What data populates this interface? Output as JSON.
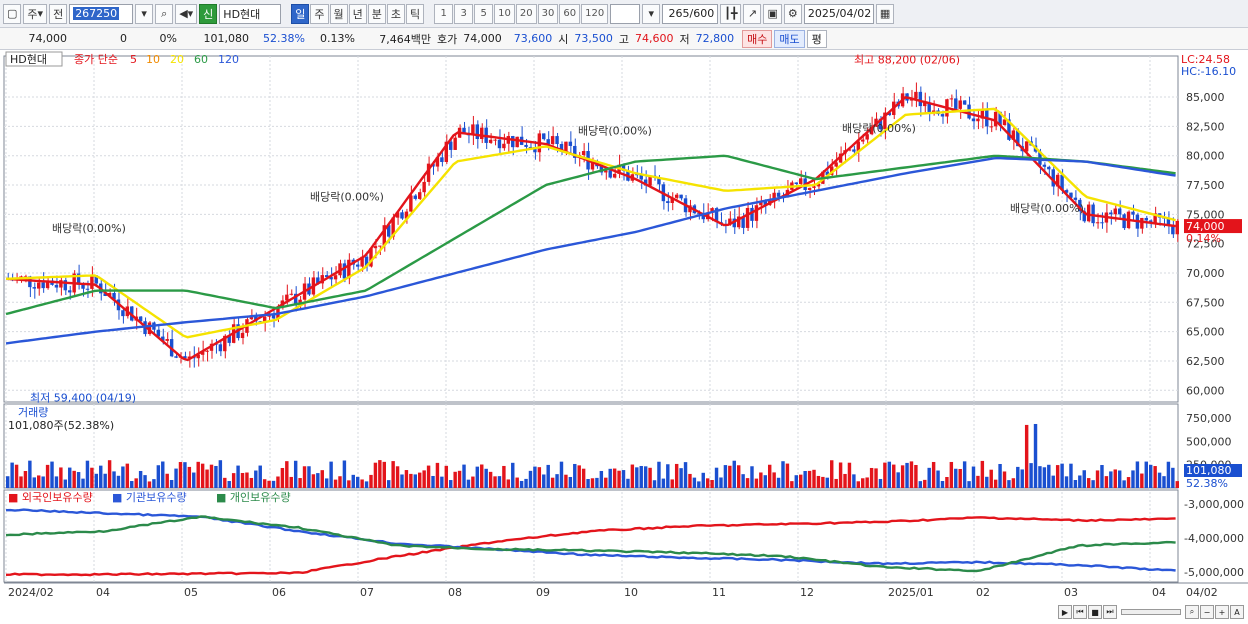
{
  "toolbar": {
    "period_label": "주",
    "prev_label": "전",
    "code": "267250",
    "credit_badge": "신",
    "stock_name": "HD현대",
    "periods": [
      "일",
      "주",
      "월",
      "년",
      "분",
      "초",
      "틱"
    ],
    "active_period": "일",
    "intervals": [
      "1",
      "3",
      "5",
      "10",
      "20",
      "30",
      "60",
      "120"
    ],
    "count_value": "265",
    "count_total": "/600",
    "date": "2025/04/02"
  },
  "quote": {
    "price": "74,000",
    "change": "0",
    "change_pct": "0%",
    "volume": "101,080",
    "volume_ratio": "52.38%",
    "turnover_pct": "0.13%",
    "trade_value": "7,464백만",
    "ask_label": "호가",
    "ask": "74,000",
    "bid": "73,600",
    "open_label": "시",
    "open": "73,500",
    "high_label": "고",
    "high": "74,600",
    "low_label": "저",
    "low": "72,800",
    "buy_label": "매수",
    "sell_label": "매도",
    "eval_label": "평"
  },
  "price_panel": {
    "name": "HD현대",
    "ma_title": "종가 단순",
    "ma_periods": [
      "5",
      "10",
      "20",
      "60",
      "120"
    ],
    "ma_colors": [
      "#e3141b",
      "#f08a00",
      "#f5e300",
      "#2b9a46",
      "#2b57d8"
    ],
    "lc": "LC:24.58",
    "hc": "HC:-16.10",
    "current_price_tag": "74,000",
    "current_pct_tag": "0.14%",
    "annotations": {
      "high": "최고 88,200 (02/06)",
      "low": "최저 59,400 (04/19)",
      "dividend": "배당락(0.00%)"
    },
    "y_ticks": [
      "85,000",
      "82,500",
      "80,000",
      "77,500",
      "75,000",
      "72,500",
      "70,000",
      "67,500",
      "65,000",
      "62,500",
      "60,000"
    ]
  },
  "volume_panel": {
    "title": "거래량",
    "info": "101,080주(52.38%)",
    "y_ticks": [
      "750,000",
      "500,000",
      "250,000"
    ],
    "tag_value": "101,080",
    "tag_pct": "52.38%"
  },
  "holdings_panel": {
    "series": [
      "외국인보유수량",
      "기관보유수량",
      "개인보유수량"
    ],
    "colors": [
      "#e3141b",
      "#2b57d8",
      "#2b8a4a"
    ],
    "y_ticks": [
      "-3,000,000",
      "-4,000,000",
      "-5,000,000"
    ]
  },
  "x_axis": {
    "labels": [
      "2024/02",
      "04",
      "05",
      "06",
      "07",
      "08",
      "09",
      "10",
      "11",
      "12",
      "2025/01",
      "02",
      "03",
      "04"
    ],
    "right_label": "04/02"
  },
  "chart_data": {
    "type": "line",
    "title": "HD현대",
    "x": [
      "2024/02",
      "04",
      "05",
      "06",
      "07",
      "08",
      "09",
      "10",
      "11",
      "12",
      "2025/01",
      "02",
      "03",
      "04"
    ],
    "series": [
      {
        "name": "5",
        "values": [
          69500,
          69000,
          62500,
          67000,
          71500,
          82000,
          81000,
          78000,
          74000,
          78000,
          85000,
          83000,
          75000,
          74000
        ]
      },
      {
        "name": "20",
        "values": [
          69500,
          69800,
          64500,
          66000,
          70500,
          79500,
          80800,
          78500,
          77000,
          77500,
          83500,
          84000,
          76500,
          74500
        ]
      },
      {
        "name": "60",
        "values": [
          66500,
          68500,
          68500,
          67000,
          68500,
          73000,
          77500,
          79500,
          80000,
          78000,
          79000,
          80000,
          79500,
          78500
        ]
      },
      {
        "name": "120",
        "values": [
          64000,
          65000,
          65800,
          66500,
          68000,
          70000,
          72000,
          73500,
          75500,
          77000,
          78500,
          79800,
          79500,
          78300
        ]
      }
    ],
    "ylim": [
      59000,
      88500
    ],
    "high": {
      "value": 88200,
      "date": "02/06"
    },
    "low": {
      "value": 59400,
      "date": "04/19"
    },
    "grid": true
  }
}
